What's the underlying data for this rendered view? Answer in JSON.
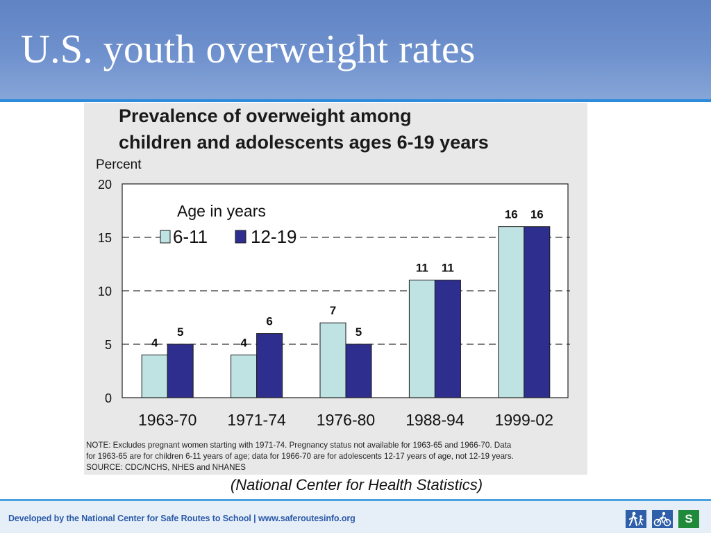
{
  "slide": {
    "title": "U.S. youth overweight rates",
    "caption": "(National Center for Health Statistics)"
  },
  "footer": {
    "text": "Developed by the National Center for Safe Routes to School | www.saferoutesinfo.org",
    "icons": [
      {
        "name": "walking-icon",
        "color": "#2f5fa8"
      },
      {
        "name": "bicycle-icon",
        "color": "#2f5fa8"
      },
      {
        "name": "srts-logo-icon",
        "color": "#1f8a3a",
        "glyph": "S"
      }
    ]
  },
  "colors": {
    "series_6_11": "#bfe3e3",
    "series_12_19": "#2e2e8e",
    "header_blue": "#6f91cd",
    "footer_text": "#2a5aa8"
  },
  "chart_data": {
    "type": "bar",
    "title_lines": [
      "Prevalence of overweight among",
      "children and adolescents ages 6-19 years"
    ],
    "ylabel": "Percent",
    "ylim": [
      0,
      20
    ],
    "yticks": [
      0,
      5,
      10,
      15,
      20
    ],
    "grid": "dashed horizontal at 5, 10, 15",
    "legend": {
      "title": "Age in years",
      "placement": "top-left"
    },
    "categories": [
      "1963-70",
      "1971-74",
      "1976-80",
      "1988-94",
      "1999-02"
    ],
    "series": [
      {
        "name": "6-11",
        "values": [
          4,
          4,
          7,
          11,
          16
        ]
      },
      {
        "name": "12-19",
        "values": [
          5,
          6,
          5,
          11,
          16
        ]
      }
    ],
    "notes": [
      "NOTE:  Excludes pregnant women starting with 1971-74.  Pregnancy status not available for 1963-65 and 1966-70.  Data",
      "for 1963-65 are for children 6-11 years of age; data for 1966-70 are for adolescents 12-17 years of age, not 12-19 years.",
      "SOURCE: CDC/NCHS, NHES and NHANES"
    ]
  }
}
